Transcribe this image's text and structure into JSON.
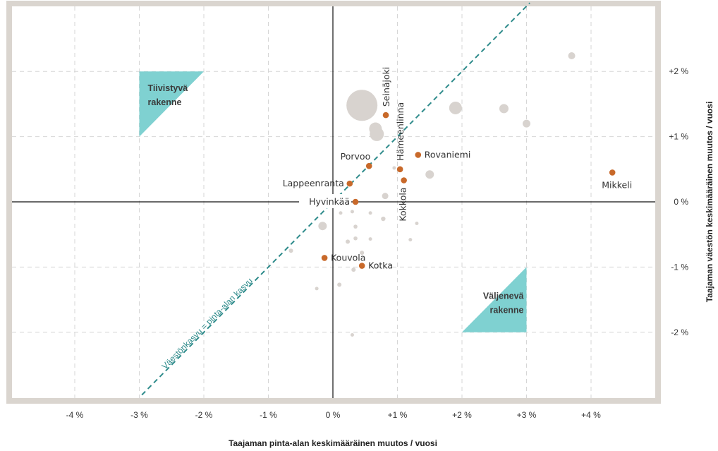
{
  "chart_data": {
    "type": "scatter",
    "xlabel": "Taajaman pinta-alan keskimääräinen muutos / vuosi",
    "ylabel": "Taajaman väestön keskimääräinen muutos / vuosi",
    "xlim": [
      -5,
      4.5
    ],
    "ylim": [
      -3,
      3
    ],
    "x_ticks": [
      {
        "v": -4,
        "label": "-4 %"
      },
      {
        "v": -3,
        "label": "-3 %"
      },
      {
        "v": -2,
        "label": "-2 %"
      },
      {
        "v": -1,
        "label": "-1 %"
      },
      {
        "v": 0,
        "label": "0 %"
      },
      {
        "v": 1,
        "label": "+1 %"
      },
      {
        "v": 2,
        "label": "+2 %"
      },
      {
        "v": 3,
        "label": "+3 %"
      },
      {
        "v": 4,
        "label": "+4 %"
      }
    ],
    "y_ticks": [
      {
        "v": 2,
        "label": "+2 %"
      },
      {
        "v": 1,
        "label": "+1 %"
      },
      {
        "v": 0,
        "label": "0 %"
      },
      {
        "v": -1,
        "label": "-1 %"
      },
      {
        "v": -2,
        "label": "-2 %"
      }
    ],
    "grid": true,
    "diagonal_label": "Väestönkasvu = pinta-alan kasvu",
    "regions": [
      {
        "name": "tiivistyva",
        "lines": [
          "Tiivistyvä",
          "rakenne"
        ],
        "polygon": [
          [
            -3,
            2
          ],
          [
            -2,
            2
          ],
          [
            -3,
            1
          ]
        ]
      },
      {
        "name": "valjeneva",
        "lines": [
          "Väljenevä",
          "rakenne"
        ],
        "polygon": [
          [
            3,
            -1
          ],
          [
            3,
            -2
          ],
          [
            2,
            -2
          ]
        ]
      }
    ],
    "highlighted_points": [
      {
        "name": "Seinäjoki",
        "x": 0.82,
        "y": 1.33,
        "label_pos": "vertical"
      },
      {
        "name": "Hämeenlinna",
        "x": 1.04,
        "y": 0.5,
        "label_pos": "vertical"
      },
      {
        "name": "Kokkola",
        "x": 1.1,
        "y": 0.33,
        "label_pos": "vertical"
      },
      {
        "name": "Rovaniemi",
        "x": 1.32,
        "y": 0.72,
        "label_pos": "right"
      },
      {
        "name": "Porvoo",
        "x": 0.56,
        "y": 0.55,
        "label_pos": "above-left"
      },
      {
        "name": "Lappeenranta",
        "x": 0.26,
        "y": 0.28,
        "label_pos": "left"
      },
      {
        "name": "Hyvinkää",
        "x": 0.35,
        "y": 0.0,
        "label_pos": "left"
      },
      {
        "name": "Kouvola",
        "x": -0.13,
        "y": -0.86,
        "label_pos": "right"
      },
      {
        "name": "Kotka",
        "x": 0.45,
        "y": -0.98,
        "label_pos": "right"
      },
      {
        "name": "Mikkeli",
        "x": 4.33,
        "y": 0.45,
        "label_pos": "below-left"
      }
    ],
    "other_points": [
      {
        "x": 0.45,
        "y": 1.48,
        "size": 22
      },
      {
        "x": 0.66,
        "y": 1.12,
        "size": 9
      },
      {
        "x": 0.68,
        "y": 1.04,
        "size": 10
      },
      {
        "x": 1.9,
        "y": 1.44,
        "size": 9
      },
      {
        "x": 2.65,
        "y": 1.43,
        "size": 6.5
      },
      {
        "x": 3.0,
        "y": 1.2,
        "size": 5.5
      },
      {
        "x": 3.7,
        "y": 2.24,
        "size": 5
      },
      {
        "x": 1.5,
        "y": 0.42,
        "size": 6
      },
      {
        "x": 0.81,
        "y": 0.09,
        "size": 4.5
      },
      {
        "x": -0.16,
        "y": -0.37,
        "size": 6
      },
      {
        "x": 0.78,
        "y": -0.26,
        "size": 3.2
      },
      {
        "x": 0.35,
        "y": -0.38,
        "size": 2.8
      },
      {
        "x": 0.35,
        "y": -0.56,
        "size": 2.8
      },
      {
        "x": 0.23,
        "y": -0.61,
        "size": 3
      },
      {
        "x": 0.58,
        "y": -0.17,
        "size": 2.5
      },
      {
        "x": 0.3,
        "y": -0.15,
        "size": 2.5
      },
      {
        "x": 0.12,
        "y": -0.17,
        "size": 2.5
      },
      {
        "x": 0.58,
        "y": -0.57,
        "size": 2.5
      },
      {
        "x": 1.2,
        "y": -0.58,
        "size": 2.5
      },
      {
        "x": 1.3,
        "y": -0.33,
        "size": 2.5
      },
      {
        "x": 0.95,
        "y": 0.52,
        "size": 2.5
      },
      {
        "x": -0.65,
        "y": -0.75,
        "size": 3
      },
      {
        "x": 0.45,
        "y": -0.78,
        "size": 3
      },
      {
        "x": 0.32,
        "y": -1.04,
        "size": 3
      },
      {
        "x": 0.1,
        "y": -1.27,
        "size": 3
      },
      {
        "x": -0.25,
        "y": -1.33,
        "size": 2.5
      },
      {
        "x": 0.3,
        "y": -2.04,
        "size": 2.5
      }
    ],
    "colors": {
      "frame": "#dad5cf",
      "grid": "#d6d6d6",
      "axis": "#111111",
      "region": "#7fd1d1",
      "diagonal": "#2e8b8b",
      "highlight": "#c8692a",
      "background_point": "#d8d3cf"
    }
  }
}
